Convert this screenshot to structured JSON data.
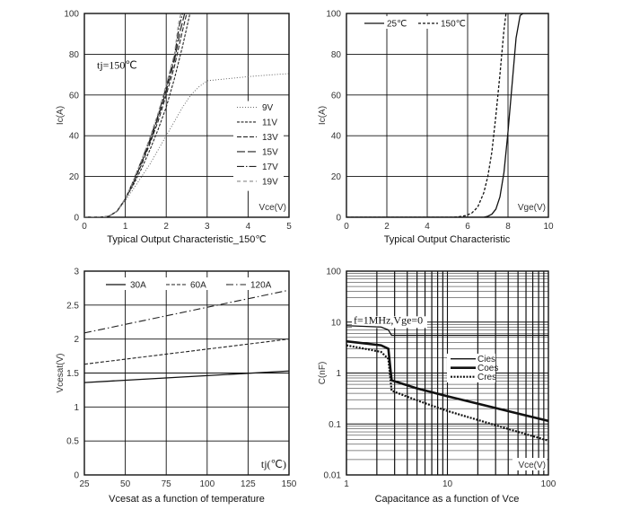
{
  "chart_data": [
    {
      "id": "c1",
      "type": "line",
      "caption": "Typical Output Characteristic_150℃",
      "xlabel": "Vce(V)",
      "ylabel": "Ic(A)",
      "xlim": [
        0,
        5
      ],
      "ylim": [
        0,
        100
      ],
      "xticks": [
        0,
        1,
        2,
        3,
        4,
        5
      ],
      "yticks": [
        0,
        20,
        40,
        60,
        80,
        100
      ],
      "annotation": "tj=150℃",
      "legend": "right",
      "series": [
        {
          "name": "9V",
          "dash": "1,2",
          "width": 0.9,
          "color": "#555555",
          "x": [
            0,
            0.4,
            0.6,
            0.8,
            1.0,
            1.2,
            1.4,
            1.6,
            1.8,
            2.0,
            2.2,
            2.4,
            2.6,
            2.8,
            3.0,
            3.5,
            4.0,
            4.5,
            5.0
          ],
          "y": [
            0,
            0,
            0.5,
            3,
            8,
            14,
            20,
            26,
            33,
            40,
            47,
            54,
            60,
            64,
            67,
            68,
            69,
            69.8,
            70.5
          ]
        },
        {
          "name": "11V",
          "dash": "3,1.5",
          "width": 1.1,
          "color": "#222222",
          "x": [
            0,
            0.4,
            0.6,
            0.8,
            1.0,
            1.2,
            1.4,
            1.6,
            1.8,
            2.0,
            2.2,
            2.4,
            2.58
          ],
          "y": [
            0,
            0,
            0.5,
            3,
            9,
            16,
            24,
            33,
            43,
            54,
            68,
            84,
            100
          ]
        },
        {
          "name": "13V",
          "dash": "5,2",
          "width": 1.1,
          "color": "#222222",
          "x": [
            0,
            0.4,
            0.6,
            0.8,
            1.0,
            1.2,
            1.4,
            1.6,
            1.8,
            2.0,
            2.2,
            2.38,
            2.5
          ],
          "y": [
            0,
            0,
            0.5,
            3,
            9,
            17,
            26,
            36,
            47,
            60,
            74,
            90,
            100
          ]
        },
        {
          "name": "15V",
          "dash": "9,3",
          "width": 1.2,
          "color": "#222222",
          "x": [
            0,
            0.4,
            0.6,
            0.8,
            1.0,
            1.2,
            1.4,
            1.6,
            1.8,
            2.0,
            2.2,
            2.35,
            2.45
          ],
          "y": [
            0,
            0,
            0.5,
            3,
            9,
            17,
            27,
            37,
            49,
            62,
            77,
            92,
            100
          ]
        },
        {
          "name": "17V",
          "dash": "8,2,1.5,2",
          "width": 1.2,
          "color": "#222222",
          "x": [
            0,
            0.4,
            0.6,
            0.8,
            1.0,
            1.2,
            1.4,
            1.6,
            1.8,
            2.0,
            2.2,
            2.32,
            2.4
          ],
          "y": [
            0,
            0,
            0.5,
            3,
            9,
            18,
            28,
            38,
            50,
            64,
            79,
            94,
            100
          ]
        },
        {
          "name": "19V",
          "dash": "4,3",
          "width": 1.1,
          "color": "#888888",
          "x": [
            0,
            0.4,
            0.6,
            0.8,
            1.0,
            1.2,
            1.4,
            1.6,
            1.8,
            2.0,
            2.2,
            2.3,
            2.36
          ],
          "y": [
            0,
            0,
            0.5,
            3,
            9,
            18,
            28,
            39,
            51,
            65,
            80,
            95,
            100
          ]
        }
      ]
    },
    {
      "id": "c2",
      "type": "line",
      "caption": "Typical Output Characteristic",
      "xlabel": "Vge(V)",
      "ylabel": "Ic(A)",
      "xlim": [
        0,
        10
      ],
      "ylim": [
        0,
        100
      ],
      "xticks": [
        0,
        2,
        4,
        6,
        8,
        10
      ],
      "yticks": [
        0,
        20,
        40,
        60,
        80,
        100
      ],
      "legend": "top-left",
      "series": [
        {
          "name": "25℃",
          "dash": "",
          "width": 1.3,
          "color": "#111111",
          "x": [
            0,
            6.8,
            7.0,
            7.2,
            7.4,
            7.6,
            7.8,
            8.0,
            8.2,
            8.4,
            8.6,
            8.75,
            10
          ],
          "y": [
            0,
            0,
            0.5,
            1.5,
            4,
            10,
            22,
            42,
            65,
            88,
            99,
            100,
            100
          ]
        },
        {
          "name": "150℃",
          "dash": "3,2",
          "width": 1.3,
          "color": "#111111",
          "x": [
            0,
            5.3,
            5.6,
            5.9,
            6.2,
            6.5,
            6.8,
            7.0,
            7.2,
            7.4,
            7.6,
            7.8,
            7.9
          ],
          "y": [
            0,
            0,
            0.3,
            0.8,
            2,
            5,
            12,
            20,
            32,
            50,
            70,
            92,
            100
          ]
        }
      ]
    },
    {
      "id": "c3",
      "type": "line",
      "caption": "Vcesat as a function of temperature",
      "xlabel": "tj(℃)",
      "ylabel": "Vcesat(V)",
      "xlim": [
        25,
        150
      ],
      "ylim": [
        0,
        3
      ],
      "xticks": [
        25,
        50,
        75,
        100,
        125,
        150
      ],
      "yticks": [
        0,
        0.5,
        1,
        1.5,
        2,
        2.5,
        3
      ],
      "legend": "top",
      "series": [
        {
          "name": "30A",
          "dash": "",
          "width": 1.3,
          "color": "#111111",
          "x": [
            25,
            150
          ],
          "y": [
            1.36,
            1.53
          ]
        },
        {
          "name": "60A",
          "dash": "4,2",
          "width": 1.1,
          "color": "#222222",
          "x": [
            25,
            150
          ],
          "y": [
            1.63,
            2.0
          ]
        },
        {
          "name": "120A",
          "dash": "8,3,1.5,3",
          "width": 1.1,
          "color": "#222222",
          "x": [
            25,
            150
          ],
          "y": [
            2.09,
            2.72
          ]
        }
      ]
    },
    {
      "id": "c4",
      "type": "line",
      "caption": "Capacitance as a function of Vce",
      "xlabel": "Vce(V)",
      "ylabel": "C(nF)",
      "xscale": "log",
      "yscale": "log",
      "xlim": [
        1,
        100
      ],
      "ylim": [
        0.01,
        100
      ],
      "xticks": [
        1,
        10,
        100
      ],
      "xtick_labels": [
        "1",
        "10",
        "100"
      ],
      "yticks": [
        0.01,
        0.1,
        1,
        10,
        100
      ],
      "ytick_labels": [
        "0.01",
        "0.1",
        "1",
        "10",
        "100"
      ],
      "annotation": "f=1MHz,Vge=0",
      "legend": "right",
      "series": [
        {
          "name": "Cies",
          "dash": "",
          "width": 1.3,
          "color": "#111111",
          "x": [
            1,
            2.2,
            2.6,
            2.8,
            100
          ],
          "y": [
            8.5,
            8.0,
            7.0,
            5.5,
            5.5
          ]
        },
        {
          "name": "Coes",
          "dash": "",
          "width": 2.6,
          "color": "#111111",
          "x": [
            1,
            2.2,
            2.6,
            2.8,
            5,
            10,
            20,
            50,
            100
          ],
          "y": [
            4.2,
            3.5,
            3.0,
            0.72,
            0.5,
            0.35,
            0.25,
            0.16,
            0.115
          ]
        },
        {
          "name": "Cres",
          "dash": "2,1.5",
          "width": 2.2,
          "color": "#111111",
          "x": [
            1,
            2.2,
            2.6,
            2.8,
            5,
            10,
            20,
            50,
            100
          ],
          "y": [
            3.5,
            2.6,
            1.9,
            0.45,
            0.29,
            0.18,
            0.12,
            0.07,
            0.047
          ]
        }
      ]
    }
  ]
}
